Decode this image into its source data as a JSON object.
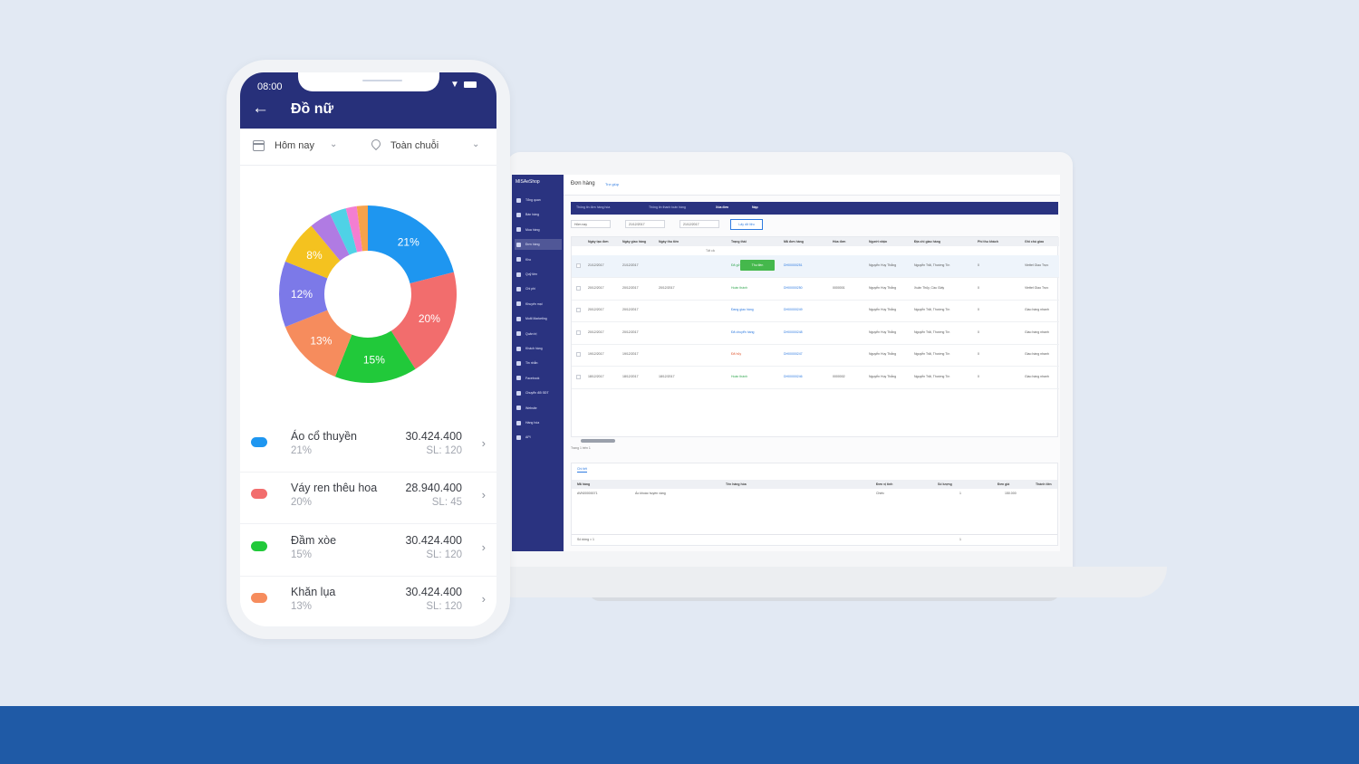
{
  "laptop": {
    "app": {
      "logo": "MISAeShop",
      "sidebar": [
        {
          "label": "Tổng quan"
        },
        {
          "label": "Bán hàng"
        },
        {
          "label": "Mua hàng"
        },
        {
          "label": "Đơn hàng",
          "active": true
        },
        {
          "label": "Kho"
        },
        {
          "label": "Quỹ tiền"
        },
        {
          "label": "Chi phí"
        },
        {
          "label": "Khuyến mại"
        },
        {
          "label": "Multi Marketing"
        },
        {
          "label": "Quản trị"
        },
        {
          "label": "Khách hàng"
        },
        {
          "label": "Tin nhắn"
        },
        {
          "label": "Facebook"
        },
        {
          "label": "Chuyển đổi SĐT"
        },
        {
          "label": "Website"
        },
        {
          "label": "Hàng hóa"
        },
        {
          "label": "API"
        }
      ],
      "header": {
        "title": "Đơn hàng",
        "crumb": "Trợ giúp"
      },
      "toolbar": [
        {
          "label": "Thông tin đơn hàng hóa"
        },
        {
          "label": "Thông tin thanh toán hàng"
        },
        {
          "label": "Xóa đơn",
          "strong": true
        },
        {
          "label": "Nạp",
          "strong": true
        }
      ],
      "filters": {
        "period": "Hôm nay",
        "from": "21/12/2017",
        "to": "21/12/2017",
        "button": "Lấy dữ liệu"
      },
      "columns": [
        "Ngày tạo đơn",
        "Ngày giao hàng",
        "Ngày thu tiền",
        "Trạng thái",
        "Mã đơn hàng",
        "Hóa đơn",
        "Người nhận",
        "Địa chỉ giao hàng",
        "Phí thu khách",
        "Ghi chú giao"
      ],
      "filter_all": "Tất cả",
      "rows": [
        {
          "created": "21/12/2017",
          "ship": "21/12/2017",
          "paid": "",
          "status": "Đã gửi HĐĐT",
          "status_kind": "green",
          "pay_btn": "Thu tiền",
          "code": "DH00000251",
          "invoice": "",
          "receiver": "Nguyễn Huy Thắng",
          "address": "Nguyễn Trãi, Thường Tín",
          "fee": "0",
          "note": "Viettel Giao Trực"
        },
        {
          "created": "20/12/2017",
          "ship": "20/12/2017",
          "paid": "20/12/2017",
          "status": "Hoàn thành",
          "status_kind": "green",
          "pay_btn": "",
          "code": "DH00000250",
          "invoice": "0000001",
          "receiver": "Nguyễn Huy Thắng",
          "address": "Xuân Thủy, Cầu Giấy",
          "fee": "0",
          "note": "Viettel Giao Trực"
        },
        {
          "created": "20/12/2017",
          "ship": "20/12/2017",
          "paid": "",
          "status": "Đang giao hàng",
          "status_kind": "blue",
          "pay_btn": "",
          "code": "DH00000249",
          "invoice": "",
          "receiver": "Nguyễn Huy Thắng",
          "address": "Nguyễn Trãi, Thường Tín",
          "fee": "0",
          "note": "Giao hàng nhanh"
        },
        {
          "created": "20/12/2017",
          "ship": "20/12/2017",
          "paid": "",
          "status": "Đã chuyển hàng",
          "status_kind": "blue",
          "pay_btn": "",
          "code": "DH00000248",
          "invoice": "",
          "receiver": "Nguyễn Huy Thắng",
          "address": "Nguyễn Trãi, Thường Tín",
          "fee": "0",
          "note": "Giao hàng nhanh"
        },
        {
          "created": "19/12/2017",
          "ship": "19/12/2017",
          "paid": "",
          "status": "Đã hủy",
          "status_kind": "red",
          "pay_btn": "",
          "code": "DH00000247",
          "invoice": "",
          "receiver": "Nguyễn Huy Thắng",
          "address": "Nguyễn Trãi, Thường Tín",
          "fee": "0",
          "note": "Giao hàng nhanh"
        },
        {
          "created": "18/12/2017",
          "ship": "18/12/2017",
          "paid": "18/12/2017",
          "status": "Hoàn thành",
          "status_kind": "green",
          "pay_btn": "",
          "code": "DH00000246",
          "invoice": "0000002",
          "receiver": "Nguyễn Huy Thắng",
          "address": "Nguyễn Trãi, Thường Tín",
          "fee": "0",
          "note": "Giao hàng nhanh"
        }
      ],
      "pager": "Trang 1 trên 1",
      "detail": {
        "tab": "Chi tiết",
        "columns": [
          "Mã hàng",
          "Tên hàng hóa",
          "Đơn vị tính",
          "Số lượng",
          "Đơn giá",
          "Thành tiền"
        ],
        "row": {
          "code": "AVN00000071",
          "name": "Áo khoác huyền vàng",
          "unit": "Chiếc",
          "qty": "1",
          "price": "150.000"
        },
        "total_label": "Số dòng = 1",
        "total_qty": "1"
      }
    }
  },
  "phone": {
    "time": "08:00",
    "title": "Đồ nữ",
    "back_icon": "back-arrow-icon",
    "period": "Hôm nay",
    "scope": "Toàn chuỗi",
    "chart_data": {
      "type": "pie",
      "slices": [
        {
          "label": "Áo cổ thuyền",
          "value": 21,
          "color": "#1e96f0"
        },
        {
          "label": "Váy ren thêu hoa",
          "value": 20,
          "color": "#f26d6d"
        },
        {
          "label": "Đầm xòe",
          "value": 15,
          "color": "#21c93a"
        },
        {
          "label": "Khăn lụa",
          "value": 13,
          "color": "#f68c5d"
        },
        {
          "value": 12,
          "color": "#7c79e8"
        },
        {
          "value": 8,
          "color": "#f4c21f"
        },
        {
          "value": 4,
          "color": "#b07be3"
        },
        {
          "value": 3,
          "color": "#4fd2e6"
        },
        {
          "value": 2,
          "color": "#f37ed1"
        },
        {
          "value": 2,
          "color": "#f7a24b"
        }
      ]
    },
    "items": [
      {
        "name": "Áo cổ thuyền",
        "pct": "21%",
        "amount": "30.424.400",
        "qty": "SL: 120",
        "color": "#1e96f0"
      },
      {
        "name": "Váy ren thêu hoa",
        "pct": "20%",
        "amount": "28.940.400",
        "qty": "SL: 45",
        "color": "#f26d6d"
      },
      {
        "name": "Đầm xòe",
        "pct": "15%",
        "amount": "30.424.400",
        "qty": "SL: 120",
        "color": "#21c93a"
      },
      {
        "name": "Khăn lụa",
        "pct": "13%",
        "amount": "30.424.400",
        "qty": "SL: 120",
        "color": "#f68c5d"
      }
    ]
  }
}
